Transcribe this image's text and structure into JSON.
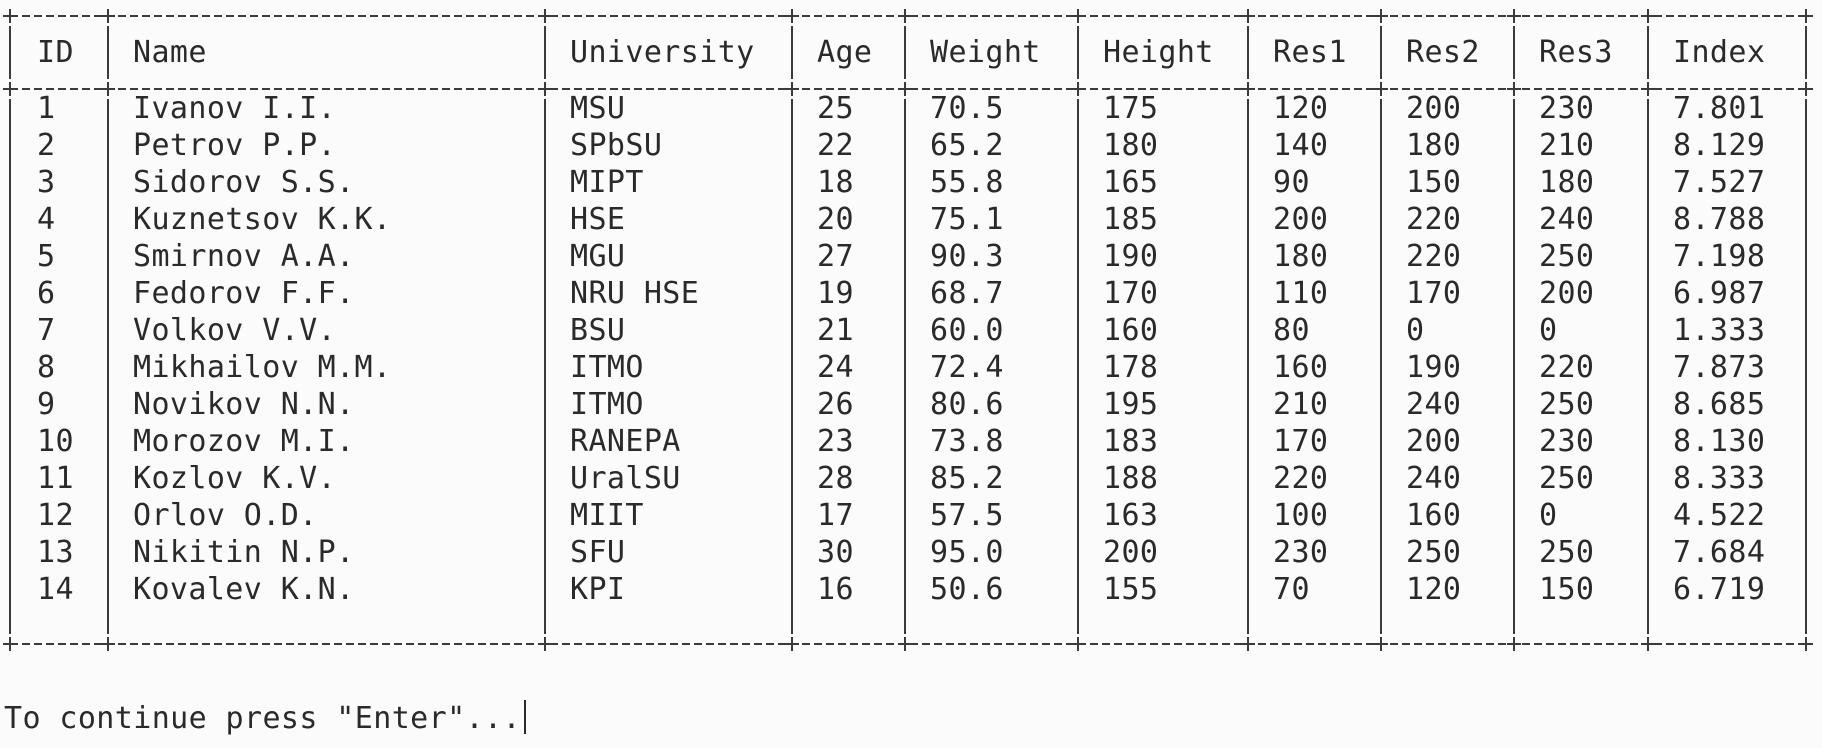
{
  "table": {
    "columns": [
      "ID",
      "Name",
      "University",
      "Age",
      "Weight",
      "Height",
      "Res1",
      "Res2",
      "Res3",
      "Index"
    ],
    "rows": [
      [
        "1",
        "Ivanov I.I.",
        "MSU",
        "25",
        "70.5",
        "175",
        "120",
        "200",
        "230",
        "7.801"
      ],
      [
        "2",
        "Petrov P.P.",
        "SPbSU",
        "22",
        "65.2",
        "180",
        "140",
        "180",
        "210",
        "8.129"
      ],
      [
        "3",
        "Sidorov S.S.",
        "MIPT",
        "18",
        "55.8",
        "165",
        "90",
        "150",
        "180",
        "7.527"
      ],
      [
        "4",
        "Kuznetsov K.K.",
        "HSE",
        "20",
        "75.1",
        "185",
        "200",
        "220",
        "240",
        "8.788"
      ],
      [
        "5",
        "Smirnov A.A.",
        "MGU",
        "27",
        "90.3",
        "190",
        "180",
        "220",
        "250",
        "7.198"
      ],
      [
        "6",
        "Fedorov F.F.",
        "NRU HSE",
        "19",
        "68.7",
        "170",
        "110",
        "170",
        "200",
        "6.987"
      ],
      [
        "7",
        "Volkov V.V.",
        "BSU",
        "21",
        "60.0",
        "160",
        "80",
        "0",
        "0",
        "1.333"
      ],
      [
        "8",
        "Mikhailov M.M.",
        "ITMO",
        "24",
        "72.4",
        "178",
        "160",
        "190",
        "220",
        "7.873"
      ],
      [
        "9",
        "Novikov N.N.",
        "ITMO",
        "26",
        "80.6",
        "195",
        "210",
        "240",
        "250",
        "8.685"
      ],
      [
        "10",
        "Morozov M.I.",
        "RANEPA",
        "23",
        "73.8",
        "183",
        "170",
        "200",
        "230",
        "8.130"
      ],
      [
        "11",
        "Kozlov K.V.",
        "UralSU",
        "28",
        "85.2",
        "188",
        "220",
        "240",
        "250",
        "8.333"
      ],
      [
        "12",
        "Orlov O.D.",
        "MIIT",
        "17",
        "57.5",
        "163",
        "100",
        "160",
        "0",
        "4.522"
      ],
      [
        "13",
        "Nikitin N.P.",
        "SFU",
        "30",
        "95.0",
        "200",
        "230",
        "250",
        "250",
        "7.684"
      ],
      [
        "14",
        "Kovalev K.N.",
        "KPI",
        "16",
        "50.6",
        "155",
        "70",
        "120",
        "150",
        "6.719"
      ]
    ]
  },
  "prompt": {
    "text": "To continue press \"Enter\"..."
  }
}
